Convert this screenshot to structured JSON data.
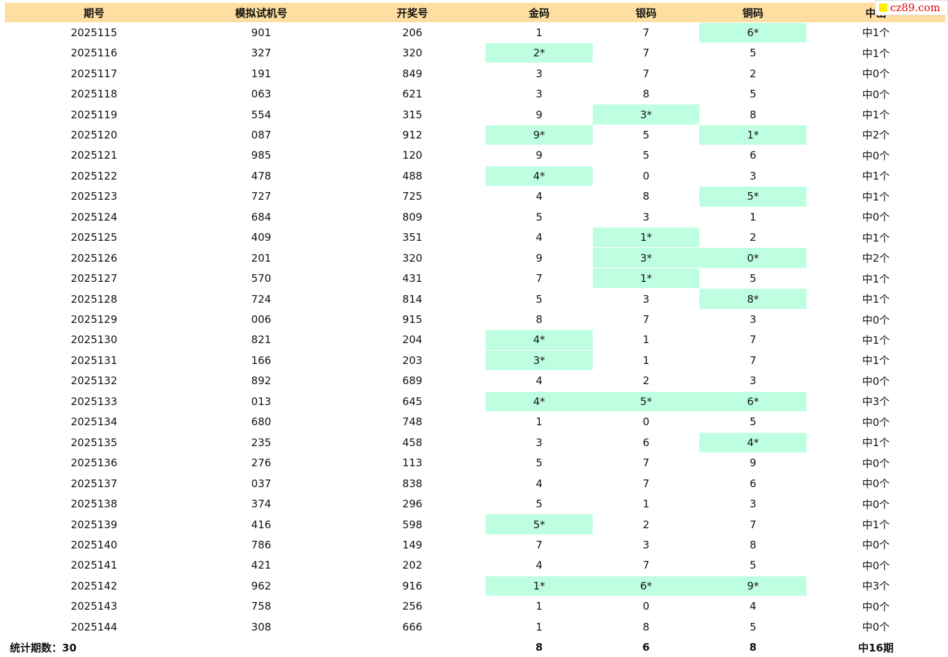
{
  "watermark": "cz89.com",
  "table": {
    "header": [
      "期号",
      "模拟试机号",
      "开奖号",
      "金码",
      "银码",
      "铜码",
      "中出"
    ],
    "rows": [
      [
        "2025115",
        "901",
        "206",
        "1",
        "7",
        "6*",
        "中1个"
      ],
      [
        "2025116",
        "327",
        "320",
        "2*",
        "7",
        "5",
        "中1个"
      ],
      [
        "2025117",
        "191",
        "849",
        "3",
        "7",
        "2",
        "中0个"
      ],
      [
        "2025118",
        "063",
        "621",
        "3",
        "8",
        "5",
        "中0个"
      ],
      [
        "2025119",
        "554",
        "315",
        "9",
        "3*",
        "8",
        "中1个"
      ],
      [
        "2025120",
        "087",
        "912",
        "9*",
        "5",
        "1*",
        "中2个"
      ],
      [
        "2025121",
        "985",
        "120",
        "9",
        "5",
        "6",
        "中0个"
      ],
      [
        "2025122",
        "478",
        "488",
        "4*",
        "0",
        "3",
        "中1个"
      ],
      [
        "2025123",
        "727",
        "725",
        "4",
        "8",
        "5*",
        "中1个"
      ],
      [
        "2025124",
        "684",
        "809",
        "5",
        "3",
        "1",
        "中0个"
      ],
      [
        "2025125",
        "409",
        "351",
        "4",
        "1*",
        "2",
        "中1个"
      ],
      [
        "2025126",
        "201",
        "320",
        "9",
        "3*",
        "0*",
        "中2个"
      ],
      [
        "2025127",
        "570",
        "431",
        "7",
        "1*",
        "5",
        "中1个"
      ],
      [
        "2025128",
        "724",
        "814",
        "5",
        "3",
        "8*",
        "中1个"
      ],
      [
        "2025129",
        "006",
        "915",
        "8",
        "7",
        "3",
        "中0个"
      ],
      [
        "2025130",
        "821",
        "204",
        "4*",
        "1",
        "7",
        "中1个"
      ],
      [
        "2025131",
        "166",
        "203",
        "3*",
        "1",
        "7",
        "中1个"
      ],
      [
        "2025132",
        "892",
        "689",
        "4",
        "2",
        "3",
        "中0个"
      ],
      [
        "2025133",
        "013",
        "645",
        "4*",
        "5*",
        "6*",
        "中3个"
      ],
      [
        "2025134",
        "680",
        "748",
        "1",
        "0",
        "5",
        "中0个"
      ],
      [
        "2025135",
        "235",
        "458",
        "3",
        "6",
        "4*",
        "中1个"
      ],
      [
        "2025136",
        "276",
        "113",
        "5",
        "7",
        "9",
        "中0个"
      ],
      [
        "2025137",
        "037",
        "838",
        "4",
        "7",
        "6",
        "中0个"
      ],
      [
        "2025138",
        "374",
        "296",
        "5",
        "1",
        "3",
        "中0个"
      ],
      [
        "2025139",
        "416",
        "598",
        "5*",
        "2",
        "7",
        "中1个"
      ],
      [
        "2025140",
        "786",
        "149",
        "7",
        "3",
        "8",
        "中0个"
      ],
      [
        "2025141",
        "421",
        "202",
        "4",
        "7",
        "5",
        "中0个"
      ],
      [
        "2025142",
        "962",
        "916",
        "1*",
        "6*",
        "9*",
        "中3个"
      ],
      [
        "2025143",
        "758",
        "256",
        "1",
        "0",
        "4",
        "中0个"
      ],
      [
        "2025144",
        "308",
        "666",
        "1",
        "8",
        "5",
        "中0个"
      ]
    ],
    "footer": {
      "label": "统计期数：30",
      "cells": [
        "8",
        "6",
        "8",
        "中16期"
      ]
    }
  }
}
